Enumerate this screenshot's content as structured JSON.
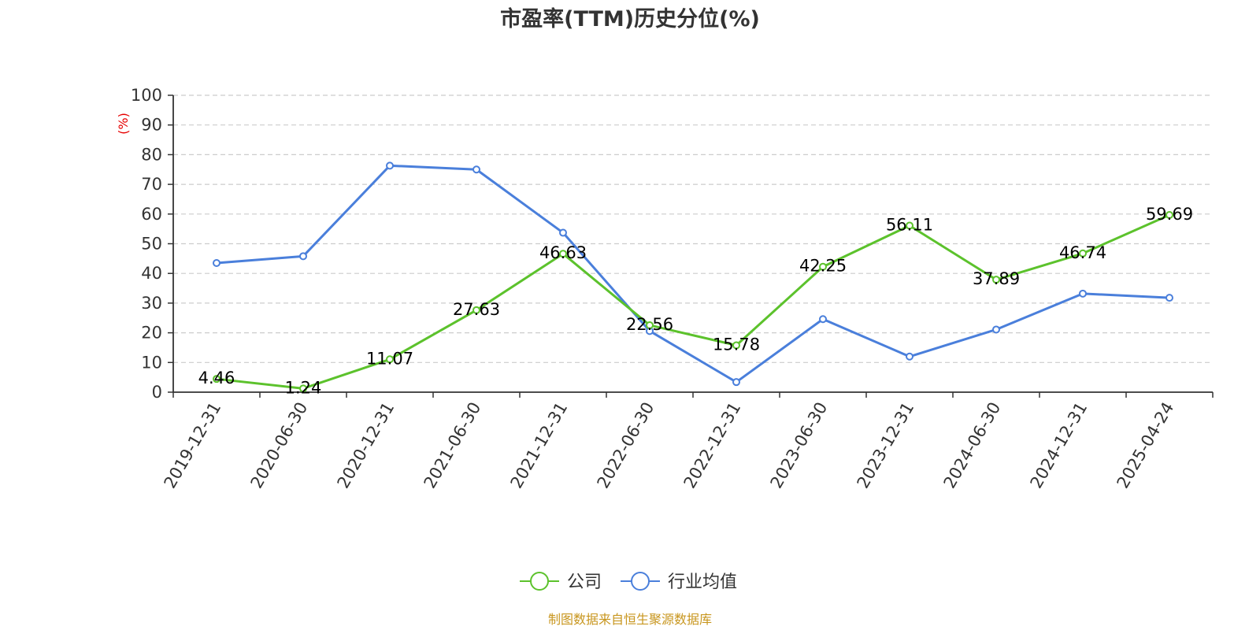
{
  "chart_data": {
    "type": "line",
    "title": "市盈率(TTM)历史分位(%)",
    "ylabel": "(%)",
    "xlabel": "",
    "ylim": [
      0,
      100
    ],
    "yticks": [
      0,
      10,
      20,
      30,
      40,
      50,
      60,
      70,
      80,
      90,
      100
    ],
    "grid": true,
    "legend_position": "bottom",
    "categories": [
      "2019-12-31",
      "2020-06-30",
      "2020-12-31",
      "2021-06-30",
      "2021-12-31",
      "2022-06-30",
      "2022-12-31",
      "2023-06-30",
      "2023-12-31",
      "2024-06-30",
      "2024-12-31",
      "2025-04-24"
    ],
    "series": [
      {
        "name": "公司",
        "color": "#5cc22c",
        "show_labels": true,
        "values": [
          4.46,
          1.24,
          11.07,
          27.63,
          46.63,
          22.56,
          15.78,
          42.25,
          56.11,
          37.89,
          46.74,
          59.69
        ],
        "labels": [
          "4.46",
          "1.24",
          "11.07",
          "27.63",
          "46.63",
          "22.56",
          "15.78",
          "42.25",
          "56.11",
          "37.89",
          "46.74",
          "59.69"
        ]
      },
      {
        "name": "行业均值",
        "color": "#4a7fdb",
        "show_labels": false,
        "values": [
          43.5,
          45.8,
          76.3,
          75.0,
          53.7,
          20.6,
          3.4,
          24.6,
          12.0,
          21.1,
          33.2,
          31.8
        ]
      }
    ],
    "unit_color": "#e60000",
    "source": "制图数据来自恒生聚源数据库",
    "source_color": "#c8961e"
  }
}
